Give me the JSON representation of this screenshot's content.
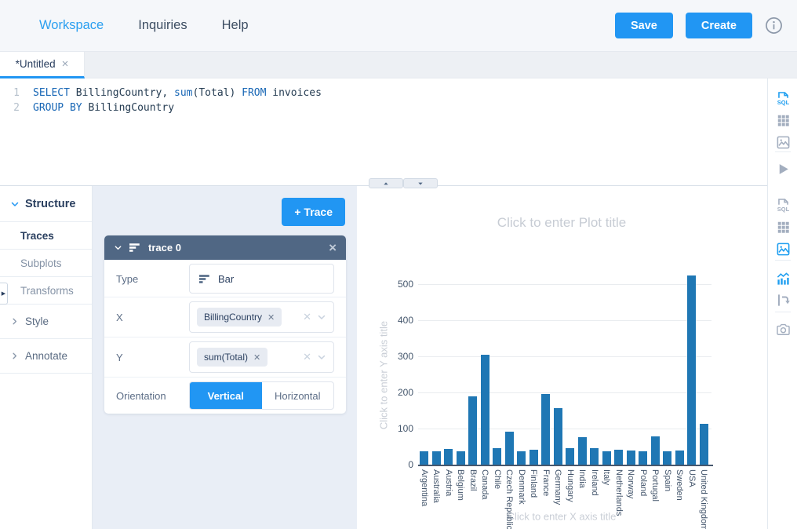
{
  "colors": {
    "accent": "#2196f3",
    "bar": "#1f77b4",
    "trace_header": "#506784",
    "panel_bg": "#e9eef6",
    "nav_active": "#2b9ff0"
  },
  "topnav": {
    "links": [
      {
        "label": "Workspace",
        "active": true
      },
      {
        "label": "Inquiries",
        "active": false
      },
      {
        "label": "Help",
        "active": false
      }
    ],
    "save_label": "Save",
    "create_label": "Create",
    "info_icon": "info-circle"
  },
  "tab": {
    "label": "*Untitled",
    "close_icon": "close"
  },
  "editor": {
    "lines": [
      {
        "number": "1",
        "segments": [
          [
            "k",
            "SELECT"
          ],
          [
            "t",
            " BillingCountry, "
          ],
          [
            "k",
            "sum"
          ],
          [
            "t",
            "(Total) "
          ],
          [
            "k",
            "FROM"
          ],
          [
            "t",
            " invoices"
          ]
        ]
      },
      {
        "number": "2",
        "segments": [
          [
            "k",
            "GROUP BY"
          ],
          [
            "t",
            " BillingCountry"
          ]
        ]
      }
    ]
  },
  "sidebar": {
    "items": [
      {
        "label": "Structure",
        "kind": "header",
        "expanded": true
      },
      {
        "label": "Traces",
        "kind": "sub",
        "active": true
      },
      {
        "label": "Subplots",
        "kind": "sub",
        "active": false
      },
      {
        "label": "Transforms",
        "kind": "sub",
        "active": false
      },
      {
        "label": "Style",
        "kind": "collapsed",
        "active": false
      },
      {
        "label": "Annotate",
        "kind": "collapsed",
        "active": false
      }
    ]
  },
  "trace_panel": {
    "add_trace_label": "+ Trace",
    "trace": {
      "title": "trace 0",
      "type_label": "Type",
      "type_value": "Bar",
      "type_icon": "bar-glyph",
      "x_label": "X",
      "x_chip": "BillingCountry",
      "y_label": "Y",
      "y_chip": "sum(Total)",
      "orientation_label": "Orientation",
      "orientation_options": [
        {
          "label": "Vertical",
          "active": true
        },
        {
          "label": "Horizontal",
          "active": false
        }
      ]
    }
  },
  "chart_data": {
    "type": "bar",
    "title_placeholder": "Click to enter Plot title",
    "xlabel_placeholder": "Click to enter X axis title",
    "ylabel_placeholder": "Click to enter Y axis title",
    "categories": [
      "Argentina",
      "Australia",
      "Austria",
      "Belgium",
      "Brazil",
      "Canada",
      "Chile",
      "Czech Republic",
      "Denmark",
      "Finland",
      "France",
      "Germany",
      "Hungary",
      "India",
      "Ireland",
      "Italy",
      "Netherlands",
      "Norway",
      "Poland",
      "Portugal",
      "Spain",
      "Sweden",
      "USA",
      "United Kingdom"
    ],
    "values": [
      37.62,
      37.62,
      42.62,
      37.62,
      190.1,
      303.96,
      46.62,
      90.24,
      37.62,
      41.62,
      195.1,
      156.48,
      45.62,
      75.26,
      45.62,
      37.62,
      40.62,
      39.62,
      37.62,
      77.24,
      37.62,
      38.62,
      523.06,
      112.86
    ],
    "yticks": [
      0,
      100,
      200,
      300,
      400,
      500
    ],
    "ylim": [
      0,
      550
    ],
    "grid": true,
    "legend": false,
    "bar_color": "#1f77b4"
  },
  "rails": {
    "editor": [
      {
        "icon": "sql-file",
        "active": true
      },
      {
        "icon": "table",
        "active": false
      },
      {
        "icon": "image",
        "active": false
      },
      {
        "icon": "divider"
      },
      {
        "icon": "run",
        "active": false
      }
    ],
    "chart": [
      {
        "icon": "sql-file",
        "active": false
      },
      {
        "icon": "table",
        "active": false
      },
      {
        "icon": "image",
        "active": true
      },
      {
        "icon": "divider"
      },
      {
        "icon": "analytics",
        "active": true
      },
      {
        "icon": "transpose",
        "active": false
      },
      {
        "icon": "divider"
      },
      {
        "icon": "camera",
        "active": false
      }
    ]
  },
  "splitter": {
    "up_icon": "triangle-up",
    "down_icon": "triangle-down"
  }
}
